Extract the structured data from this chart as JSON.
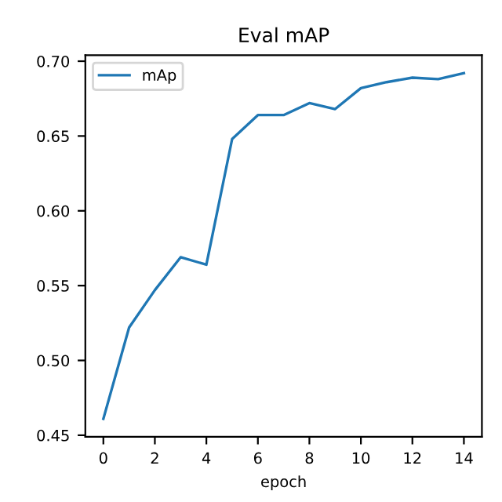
{
  "chart_data": {
    "type": "line",
    "title": "Eval mAP",
    "xlabel": "epoch",
    "x": [
      0,
      1,
      2,
      3,
      4,
      5,
      6,
      7,
      8,
      9,
      10,
      11,
      12,
      13,
      14
    ],
    "series": [
      {
        "name": "mAp",
        "color": "#1f77b4",
        "values": [
          0.461,
          0.522,
          0.547,
          0.569,
          0.564,
          0.648,
          0.664,
          0.664,
          0.672,
          0.668,
          0.682,
          0.686,
          0.689,
          0.688,
          0.692
        ]
      }
    ],
    "xlim": [
      -0.7,
      14.7
    ],
    "xticks": [
      0,
      2,
      4,
      6,
      8,
      10,
      12,
      14
    ],
    "ylim": [
      0.449,
      0.704
    ],
    "yticks": [
      {
        "value": 0.45,
        "label": "0.45"
      },
      {
        "value": 0.5,
        "label": "0.50"
      },
      {
        "value": 0.55,
        "label": "0.55"
      },
      {
        "value": 0.6,
        "label": "0.60"
      },
      {
        "value": 0.65,
        "label": "0.65"
      },
      {
        "value": 0.7,
        "label": "0.70"
      }
    ],
    "legend": "top left",
    "grid": false
  }
}
